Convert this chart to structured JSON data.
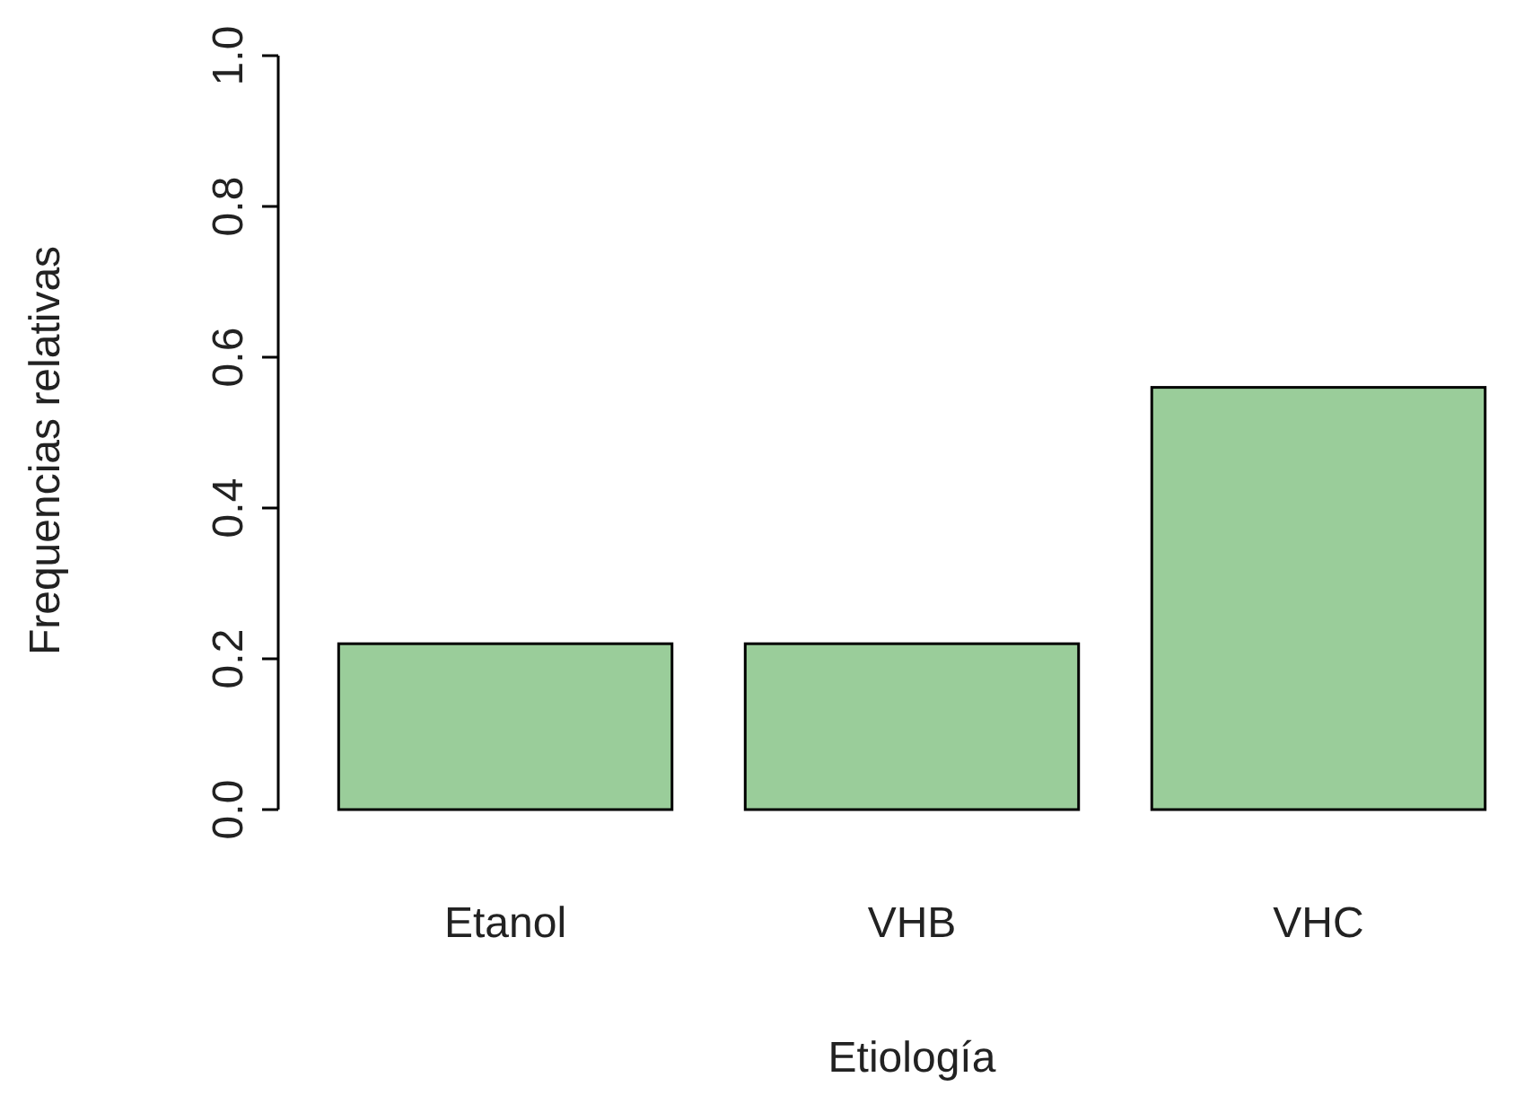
{
  "chart_data": {
    "type": "bar",
    "xlabel": "Etiología",
    "ylabel": "Frequencias relativas",
    "categories": [
      "Etanol",
      "VHB",
      "VHC"
    ],
    "values": [
      0.22,
      0.22,
      0.56
    ],
    "color": "#9acd9a",
    "ylim": [
      0,
      1
    ],
    "yticks": [
      {
        "value": 0,
        "label": "0.0"
      },
      {
        "value": 0.2,
        "label": "0.2"
      },
      {
        "value": 0.4,
        "label": "0.4"
      },
      {
        "value": 0.6,
        "label": "0.6"
      },
      {
        "value": 0.8,
        "label": "0.8"
      },
      {
        "value": 1,
        "label": "1.0"
      }
    ]
  }
}
